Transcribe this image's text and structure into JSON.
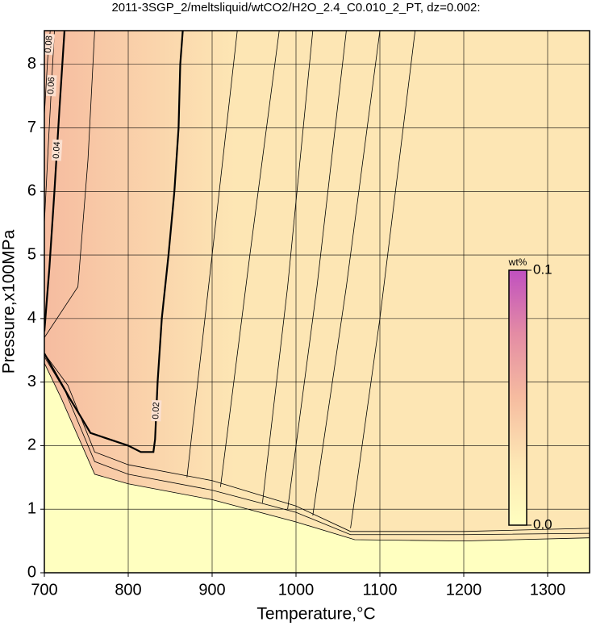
{
  "chart_data": {
    "type": "contour",
    "title": "2011-3SGP_2/meltsliquid/wtCO2/H2O_2.4_C0.010_2_PT, dz=0.002:",
    "xlabel": "Temperature,°C",
    "ylabel": "Pressure,x100MPa",
    "xlim": [
      700,
      1350
    ],
    "ylim": [
      0,
      8.53
    ],
    "xticks": [
      700,
      800,
      900,
      1000,
      1100,
      1200,
      1300
    ],
    "yticks": [
      0,
      1,
      2,
      3,
      4,
      5,
      6,
      7,
      8
    ],
    "grid": true,
    "colorbar": {
      "label": "wt%",
      "lim": [
        0,
        0.1
      ],
      "ticks": [
        {
          "value": 0,
          "label": "0.0"
        },
        {
          "value": 0.1,
          "label": "0.1"
        }
      ],
      "colors": [
        "#ffffc0",
        "#fde6b4",
        "#f6bca0",
        "#e48ca4",
        "#c050c0"
      ]
    },
    "contours": [
      {
        "level": 0.002,
        "x": [
          700,
          720,
          760,
          800,
          900,
          1000,
          1070,
          1200,
          1350
        ],
        "y": [
          3.3,
          2.75,
          1.55,
          1.4,
          1.15,
          0.8,
          0.52,
          0.5,
          0.55
        ]
      },
      {
        "level": 0.004,
        "x": [
          700,
          725,
          760,
          800,
          900,
          1000,
          1065,
          1200,
          1350
        ],
        "y": [
          3.4,
          2.85,
          1.75,
          1.55,
          1.3,
          0.95,
          0.6,
          0.6,
          0.62
        ]
      },
      {
        "level": 0.006,
        "x": [
          700,
          728,
          760,
          800,
          900,
          1000,
          1065,
          1200,
          1350
        ],
        "y": [
          3.45,
          2.95,
          1.9,
          1.7,
          1.45,
          1.05,
          0.65,
          0.65,
          0.7
        ]
      },
      {
        "level": 0.008,
        "x": [
          1065,
          1100,
          1142
        ],
        "y": [
          0.7,
          4,
          8.53
        ]
      },
      {
        "level": 0.01,
        "x": [
          1020,
          1060,
          1100
        ],
        "y": [
          0.9,
          4.5,
          8.53
        ]
      },
      {
        "level": 0.012,
        "x": [
          990,
          1025,
          1060
        ],
        "y": [
          1.0,
          4.5,
          8.53
        ]
      },
      {
        "level": 0.014,
        "x": [
          960,
          990,
          1020
        ],
        "y": [
          1.1,
          4.5,
          8.53
        ]
      },
      {
        "level": 0.016,
        "x": [
          910,
          945,
          980
        ],
        "y": [
          1.35,
          5,
          8.53
        ]
      },
      {
        "level": 0.018,
        "x": [
          870,
          900,
          930
        ],
        "y": [
          1.5,
          5,
          8.53
        ]
      },
      {
        "level": 0.02,
        "bold": true,
        "labeled": true,
        "x": [
          700,
          730,
          755,
          800,
          815,
          830,
          832,
          835,
          840,
          848,
          855,
          860,
          862,
          865
        ],
        "y": [
          3.45,
          2.75,
          2.2,
          2.0,
          1.9,
          1.9,
          2.1,
          3.0,
          4.0,
          5.0,
          6.0,
          7.0,
          8.0,
          8.53
        ]
      },
      {
        "level": 0.03,
        "x": [
          700,
          740,
          752,
          760
        ],
        "y": [
          3.7,
          4.5,
          6.5,
          8.53
        ]
      },
      {
        "level": 0.04,
        "bold": true,
        "labeled": true,
        "x": [
          700,
          706,
          712,
          718,
          724
        ],
        "y": [
          3.8,
          4.8,
          6.0,
          7.3,
          8.53
        ]
      },
      {
        "level": 0.06,
        "labeled": true,
        "x": [
          700,
          705,
          712
        ],
        "y": [
          5.5,
          6.8,
          8.53
        ]
      },
      {
        "level": 0.08,
        "labeled": true,
        "x": [
          700,
          704,
          707
        ],
        "y": [
          7.2,
          8.1,
          8.53
        ]
      }
    ]
  }
}
